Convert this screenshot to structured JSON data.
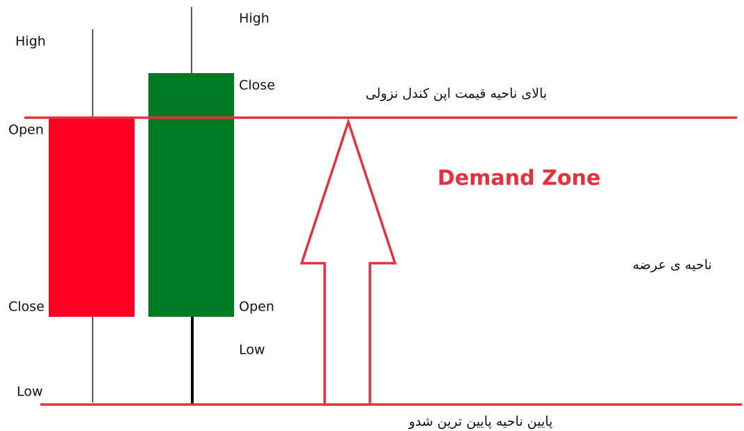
{
  "candles": [
    {
      "labels": {
        "high": "High",
        "open": "Open",
        "close": "Close",
        "low": "Low"
      }
    },
    {
      "labels": {
        "high": "High",
        "close": "Close",
        "open": "Open",
        "low": "Low"
      }
    }
  ],
  "zone_title": "Demand Zone",
  "top_line_label": "بالای ناحیه قیمت اپن کندل نزولی",
  "side_label": "ناحیه ی عرضه",
  "bottom_line_label": "پایین ناحیه پایین ترین شدو"
}
